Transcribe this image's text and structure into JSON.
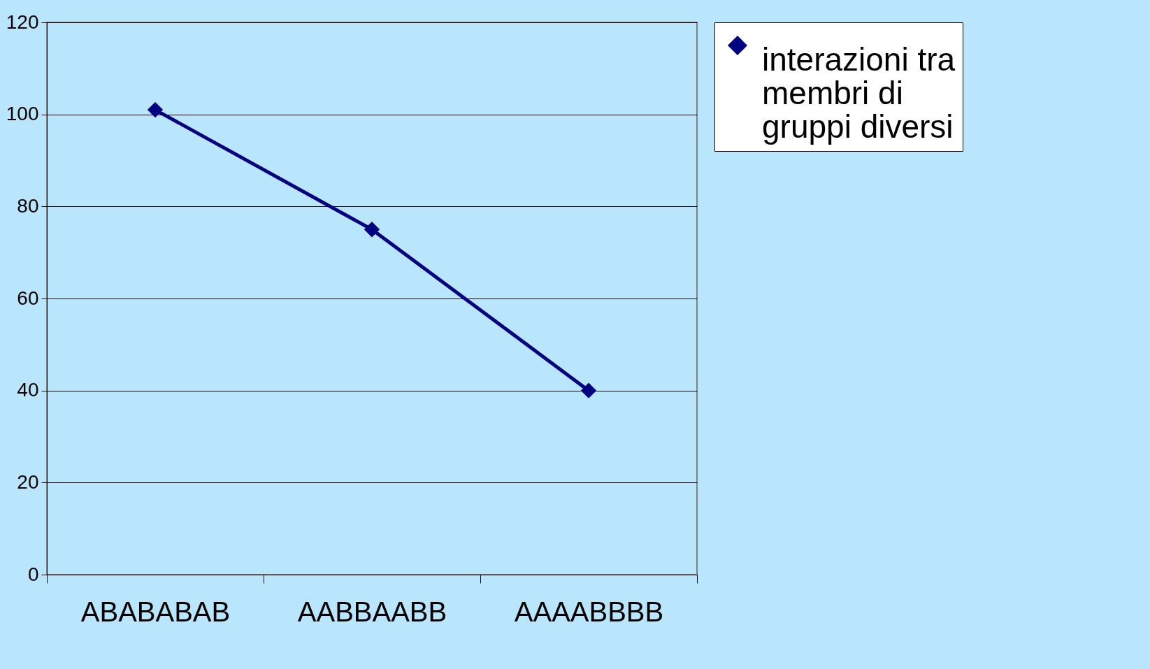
{
  "chart_data": {
    "type": "line",
    "categories": [
      "ABABABAB",
      "AABBAABB",
      "AAAABBBB"
    ],
    "series": [
      {
        "name": "interazioni tra membri di gruppi diversi",
        "color": "#000080",
        "values": [
          101,
          75,
          40
        ]
      }
    ],
    "ylim": [
      0,
      120
    ],
    "yticks": [
      0,
      20,
      40,
      60,
      80,
      100,
      120
    ],
    "grid": "y",
    "legend": "right",
    "marker": "diamond",
    "line_style": "solid"
  }
}
